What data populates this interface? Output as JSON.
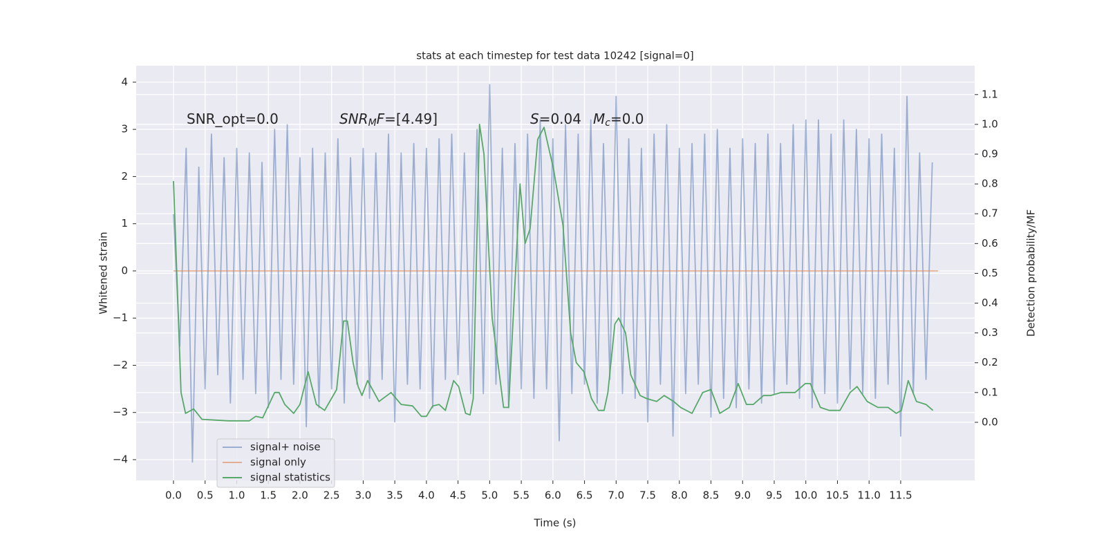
{
  "chart_data": {
    "type": "line",
    "title": "stats at each timestep for test data 10242 [signal=0]",
    "x_label": "Time (s)",
    "y_label": "Whitened strain",
    "y2_label": "Detection probability/MF",
    "xlim": [
      -0.59,
      12.67
    ],
    "ylim": [
      -4.44,
      4.35
    ],
    "y2lim": [
      -0.195,
      1.197
    ],
    "xticks": [
      {
        "value": 0,
        "label": "0.0"
      },
      {
        "value": 0.5,
        "label": "0.5"
      },
      {
        "value": 1,
        "label": "1.0"
      },
      {
        "value": 1.5,
        "label": "1.5"
      },
      {
        "value": 2,
        "label": "2.0"
      },
      {
        "value": 2.5,
        "label": "2.5"
      },
      {
        "value": 3,
        "label": "3.0"
      },
      {
        "value": 3.5,
        "label": "3.5"
      },
      {
        "value": 4,
        "label": "4.0"
      },
      {
        "value": 4.5,
        "label": "4.5"
      },
      {
        "value": 5,
        "label": "5.0"
      },
      {
        "value": 5.5,
        "label": "5.5"
      },
      {
        "value": 6,
        "label": "6.0"
      },
      {
        "value": 6.5,
        "label": "6.5"
      },
      {
        "value": 7,
        "label": "7.0"
      },
      {
        "value": 7.5,
        "label": "7.5"
      },
      {
        "value": 8,
        "label": "8.0"
      },
      {
        "value": 8.5,
        "label": "8.5"
      },
      {
        "value": 9,
        "label": "9.0"
      },
      {
        "value": 9.5,
        "label": "9.5"
      },
      {
        "value": 10,
        "label": "10.0"
      },
      {
        "value": 10.5,
        "label": "10.5"
      },
      {
        "value": 11,
        "label": "11.0"
      },
      {
        "value": 11.5,
        "label": "11.5"
      }
    ],
    "yticks": [
      {
        "value": -4,
        "label": "−4"
      },
      {
        "value": -3,
        "label": "−3"
      },
      {
        "value": -2,
        "label": "−2"
      },
      {
        "value": -1,
        "label": "−1"
      },
      0,
      1,
      2,
      3,
      4
    ],
    "y2ticks": [
      {
        "value": 0,
        "label": "0.0"
      },
      {
        "value": 0.1,
        "label": "0.1"
      },
      {
        "value": 0.2,
        "label": "0.2"
      },
      {
        "value": 0.3,
        "label": "0.3"
      },
      {
        "value": 0.4,
        "label": "0.4"
      },
      {
        "value": 0.5,
        "label": "0.5"
      },
      {
        "value": 0.6,
        "label": "0.6"
      },
      {
        "value": 0.7,
        "label": "0.7"
      },
      {
        "value": 0.8,
        "label": "0.8"
      },
      {
        "value": 0.9,
        "label": "0.9"
      },
      {
        "value": 1,
        "label": "1.0"
      },
      {
        "value": 1.1,
        "label": "1.1"
      }
    ],
    "grid": true,
    "background": "#eaeaf2",
    "legend": "lower left",
    "annotations": [
      {
        "parts": [
          {
            "text": "SNR_opt=0.0"
          }
        ]
      },
      {
        "parts": [
          {
            "text": "SNR",
            "italic": true
          },
          {
            "text": "M",
            "italic": true,
            "sub": true
          },
          {
            "text": "F",
            "italic": true
          },
          {
            "text": "=[4.49]"
          }
        ]
      },
      {
        "parts": [
          {
            "text": "S",
            "italic": true
          },
          {
            "text": "=0.04"
          }
        ]
      },
      {
        "parts": [
          {
            "text": "M",
            "italic": true
          },
          {
            "text": "c",
            "italic": true,
            "sub": true
          },
          {
            "text": "=0.0"
          }
        ]
      }
    ],
    "series": [
      {
        "name": "signal+ noise",
        "color": "#4c72b0",
        "opacity": 0.5,
        "axis": "y",
        "x": [
          0.0,
          0.1,
          0.2,
          0.3,
          0.4,
          0.5,
          0.6,
          0.7,
          0.8,
          0.9,
          1.0,
          1.1,
          1.2,
          1.3,
          1.4,
          1.5,
          1.6,
          1.7,
          1.8,
          1.9,
          2.0,
          2.1,
          2.2,
          2.3,
          2.4,
          2.5,
          2.6,
          2.7,
          2.8,
          2.9,
          3.0,
          3.1,
          3.2,
          3.3,
          3.4,
          3.5,
          3.6,
          3.7,
          3.8,
          3.9,
          4.0,
          4.1,
          4.2,
          4.3,
          4.4,
          4.5,
          4.6,
          4.7,
          4.8,
          4.9,
          5.0,
          5.1,
          5.2,
          5.3,
          5.4,
          5.5,
          5.6,
          5.7,
          5.8,
          5.9,
          6.0,
          6.1,
          6.2,
          6.3,
          6.4,
          6.5,
          6.6,
          6.7,
          6.8,
          6.9,
          7.0,
          7.1,
          7.2,
          7.3,
          7.4,
          7.5,
          7.6,
          7.7,
          7.8,
          7.9,
          8.0,
          8.1,
          8.2,
          8.3,
          8.4,
          8.5,
          8.6,
          8.7,
          8.8,
          8.9,
          9.0,
          9.1,
          9.2,
          9.3,
          9.4,
          9.5,
          9.6,
          9.7,
          9.8,
          9.9,
          10.0,
          10.1,
          10.2,
          10.3,
          10.4,
          10.5,
          10.6,
          10.7,
          10.8,
          10.9,
          11.0,
          11.1,
          11.2,
          11.3,
          11.4,
          11.5,
          11.6,
          11.7,
          11.8,
          11.9,
          12.0
        ],
        "values": [
          1.2,
          -1.6,
          2.6,
          -4.05,
          2.2,
          -2.5,
          2.9,
          -2.2,
          2.4,
          -2.8,
          2.6,
          -2.3,
          2.5,
          -2.6,
          2.3,
          -2.9,
          3.0,
          -2.3,
          3.1,
          -2.4,
          2.4,
          -3.3,
          2.6,
          -2.9,
          2.5,
          -2.5,
          2.8,
          -2.8,
          2.4,
          -2.4,
          2.6,
          -2.7,
          2.5,
          -2.3,
          2.9,
          -3.2,
          2.5,
          -2.4,
          2.7,
          -2.5,
          2.6,
          -2.9,
          2.8,
          -2.3,
          2.9,
          -2.2,
          2.5,
          -2.6,
          3.0,
          -2.6,
          3.95,
          -2.4,
          2.6,
          -2.9,
          2.7,
          -2.5,
          2.9,
          -2.7,
          3.2,
          -2.5,
          2.8,
          -3.6,
          3.1,
          -2.6,
          2.9,
          -2.4,
          3.2,
          -2.8,
          2.7,
          -2.3,
          3.7,
          -2.6,
          2.8,
          -2.7,
          2.6,
          -3.2,
          2.9,
          -2.4,
          3.1,
          -3.5,
          2.6,
          -2.6,
          2.7,
          -2.4,
          2.9,
          -3.1,
          3.0,
          -2.7,
          2.6,
          -2.9,
          2.8,
          -2.5,
          2.7,
          -2.8,
          2.9,
          -2.6,
          2.7,
          -2.4,
          3.1,
          -2.7,
          3.2,
          -2.9,
          3.2,
          -2.6,
          2.9,
          -2.8,
          3.2,
          -2.5,
          3.0,
          -2.6,
          2.8,
          -2.7,
          2.9,
          -2.4,
          2.6,
          -3.5,
          3.7,
          -2.6,
          2.5,
          -2.3,
          2.3
        ]
      },
      {
        "name": "signal only",
        "color": "#dd8452",
        "opacity": 0.6,
        "axis": "y",
        "x": [
          0.0,
          12.09
        ],
        "values": [
          0,
          0
        ]
      },
      {
        "name": "signal statistics",
        "color": "#55a868",
        "opacity": 1,
        "axis": "y2",
        "x": [
          0.0,
          0.12,
          0.19,
          0.32,
          0.45,
          0.87,
          1.2,
          1.3,
          1.41,
          1.6,
          1.67,
          1.76,
          1.9,
          2.0,
          2.13,
          2.26,
          2.39,
          2.58,
          2.69,
          2.75,
          2.84,
          2.92,
          2.98,
          3.07,
          3.25,
          3.44,
          3.6,
          3.78,
          3.92,
          4.0,
          4.1,
          4.2,
          4.3,
          4.43,
          4.51,
          4.62,
          4.69,
          4.74,
          4.84,
          4.91,
          5.04,
          5.13,
          5.22,
          5.3,
          5.48,
          5.56,
          5.64,
          5.76,
          5.86,
          6.01,
          6.16,
          6.28,
          6.37,
          6.49,
          6.61,
          6.72,
          6.81,
          6.87,
          6.98,
          7.04,
          7.15,
          7.23,
          7.38,
          7.48,
          7.64,
          7.76,
          7.91,
          8.02,
          8.2,
          8.37,
          8.5,
          8.64,
          8.79,
          8.93,
          9.06,
          9.17,
          9.33,
          9.44,
          9.61,
          9.83,
          9.99,
          10.07,
          10.23,
          10.37,
          10.54,
          10.7,
          10.81,
          10.97,
          11.14,
          11.3,
          11.43,
          11.51,
          11.62,
          11.75,
          11.9,
          12.01
        ],
        "values": [
          0.81,
          0.1,
          0.03,
          0.045,
          0.01,
          0.005,
          0.005,
          0.02,
          0.015,
          0.1,
          0.1,
          0.06,
          0.03,
          0.06,
          0.17,
          0.06,
          0.04,
          0.11,
          0.34,
          0.34,
          0.2,
          0.12,
          0.09,
          0.14,
          0.07,
          0.1,
          0.06,
          0.055,
          0.02,
          0.02,
          0.055,
          0.06,
          0.04,
          0.14,
          0.12,
          0.03,
          0.025,
          0.08,
          1.0,
          0.9,
          0.35,
          0.2,
          0.05,
          0.05,
          0.8,
          0.6,
          0.65,
          0.95,
          0.99,
          0.85,
          0.66,
          0.3,
          0.2,
          0.17,
          0.08,
          0.04,
          0.04,
          0.1,
          0.33,
          0.35,
          0.3,
          0.16,
          0.09,
          0.08,
          0.07,
          0.09,
          0.07,
          0.05,
          0.03,
          0.1,
          0.11,
          0.03,
          0.05,
          0.13,
          0.06,
          0.06,
          0.09,
          0.09,
          0.1,
          0.1,
          0.13,
          0.13,
          0.05,
          0.04,
          0.04,
          0.1,
          0.12,
          0.07,
          0.05,
          0.05,
          0.03,
          0.04,
          0.14,
          0.07,
          0.06,
          0.04
        ]
      }
    ]
  }
}
